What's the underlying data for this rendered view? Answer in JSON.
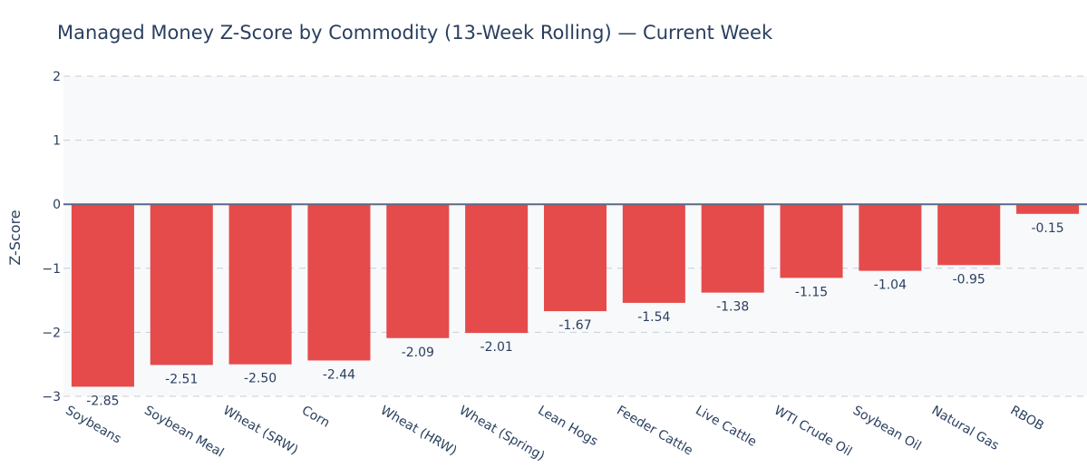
{
  "chart_data": {
    "type": "bar",
    "title": "Managed Money Z-Score by Commodity (13-Week Rolling) — Current Week",
    "xlabel": "",
    "ylabel": "Z-Score",
    "ylim": [
      -3,
      2
    ],
    "yticks": [
      2,
      1,
      0,
      -1,
      -2,
      -3
    ],
    "ytick_labels": [
      "2",
      "1",
      "0",
      "−1",
      "−2",
      "−3"
    ],
    "grid": true,
    "legend": "none",
    "categories": [
      "Soybeans",
      "Soybean Meal",
      "Wheat (SRW)",
      "Corn",
      "Wheat (HRW)",
      "Wheat (Spring)",
      "Lean Hogs",
      "Feeder Cattle",
      "Live Cattle",
      "WTI Crude Oil",
      "Soybean Oil",
      "Natural Gas",
      "RBOB"
    ],
    "values": [
      -2.85,
      -2.51,
      -2.5,
      -2.44,
      -2.09,
      -2.01,
      -1.67,
      -1.54,
      -1.38,
      -1.15,
      -1.04,
      -0.95,
      -0.15
    ],
    "data_labels": [
      "-2.85",
      "-2.51",
      "-2.50",
      "-2.44",
      "-2.09",
      "-2.01",
      "-1.67",
      "-1.54",
      "-1.38",
      "-1.15",
      "-1.04",
      "-0.95",
      "-0.15"
    ],
    "colors": {
      "bar": "#e54b4b",
      "plot_bg": "#f8f9fb",
      "grid": "#c9ced6",
      "zero_line": "#5a6a82",
      "text": "#2a3f5f"
    }
  }
}
